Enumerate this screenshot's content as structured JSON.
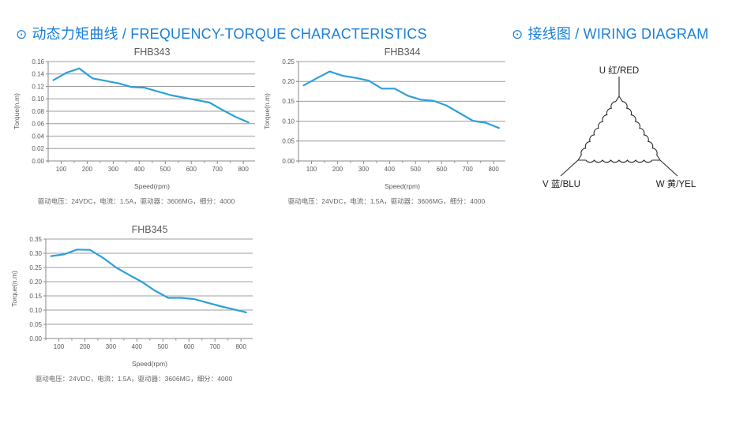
{
  "page": {
    "bullet": "⊙",
    "section1_title": "动态力矩曲线 / FREQUENCY-TORQUE CHARACTERISTICS",
    "section2_title": "接线图 / WIRING DIAGRAM"
  },
  "wiring": {
    "terminals": [
      {
        "id": "U",
        "label": "U 红/RED"
      },
      {
        "id": "V",
        "label": "V 蓝/BLU"
      },
      {
        "id": "W",
        "label": "W 黄/YEL"
      }
    ]
  },
  "chart_data": [
    {
      "type": "line",
      "title": "FHB343",
      "xlabel": "Speed(rpm)",
      "ylabel": "Torque(n.m)",
      "caption": "驱动电压：24VDC，电流：1.5A，驱动器：3606MG，细分：4000",
      "xlim": [
        50,
        845
      ],
      "ylim": [
        0,
        0.16
      ],
      "ystep": 0.02,
      "xticks": [
        100,
        200,
        300,
        400,
        500,
        600,
        700,
        800
      ],
      "x_minor_step": 50,
      "line_color": "#2e9fd8",
      "x": [
        70,
        120,
        170,
        220,
        270,
        320,
        370,
        420,
        470,
        520,
        570,
        620,
        670,
        720,
        770,
        820
      ],
      "y": [
        0.13,
        0.142,
        0.149,
        0.133,
        0.129,
        0.125,
        0.119,
        0.118,
        0.112,
        0.106,
        0.102,
        0.098,
        0.094,
        0.082,
        0.071,
        0.062
      ]
    },
    {
      "type": "line",
      "title": "FHB344",
      "xlabel": "Speed(rpm)",
      "ylabel": "Torque(n.m)",
      "caption": "驱动电压：24VDC，电流：1.5A，驱动器：3606MG，细分：4000",
      "xlim": [
        50,
        845
      ],
      "ylim": [
        0,
        0.25
      ],
      "ystep": 0.05,
      "xticks": [
        100,
        200,
        300,
        400,
        500,
        600,
        700,
        800
      ],
      "x_minor_step": 50,
      "line_color": "#2e9fd8",
      "x": [
        70,
        120,
        170,
        220,
        270,
        320,
        370,
        420,
        470,
        520,
        570,
        620,
        670,
        720,
        770,
        820
      ],
      "y": [
        0.19,
        0.208,
        0.225,
        0.214,
        0.209,
        0.202,
        0.182,
        0.182,
        0.164,
        0.154,
        0.151,
        0.139,
        0.12,
        0.101,
        0.096,
        0.083
      ]
    },
    {
      "type": "line",
      "title": "FHB345",
      "xlabel": "Speed(rpm)",
      "ylabel": "Torque(n.m)",
      "caption": "驱动电压：24VDC，电流：1.5A，驱动器：3606MG，细分：4000",
      "xlim": [
        50,
        845
      ],
      "ylim": [
        0,
        0.35
      ],
      "ystep": 0.05,
      "xticks": [
        100,
        200,
        300,
        400,
        500,
        600,
        700,
        800
      ],
      "x_minor_step": 50,
      "line_color": "#2e9fd8",
      "x": [
        70,
        120,
        170,
        220,
        270,
        320,
        370,
        420,
        470,
        520,
        570,
        620,
        670,
        720,
        770,
        820
      ],
      "y": [
        0.29,
        0.296,
        0.313,
        0.312,
        0.284,
        0.25,
        0.224,
        0.199,
        0.168,
        0.143,
        0.143,
        0.139,
        0.126,
        0.114,
        0.103,
        0.092
      ]
    }
  ],
  "style": {
    "accent_blue": "#1a80d8",
    "curve_blue": "#2e9fd8",
    "grid_gray": "#9c9c9c",
    "axis_gray": "#8a8a8a",
    "label_gray": "#595959"
  }
}
